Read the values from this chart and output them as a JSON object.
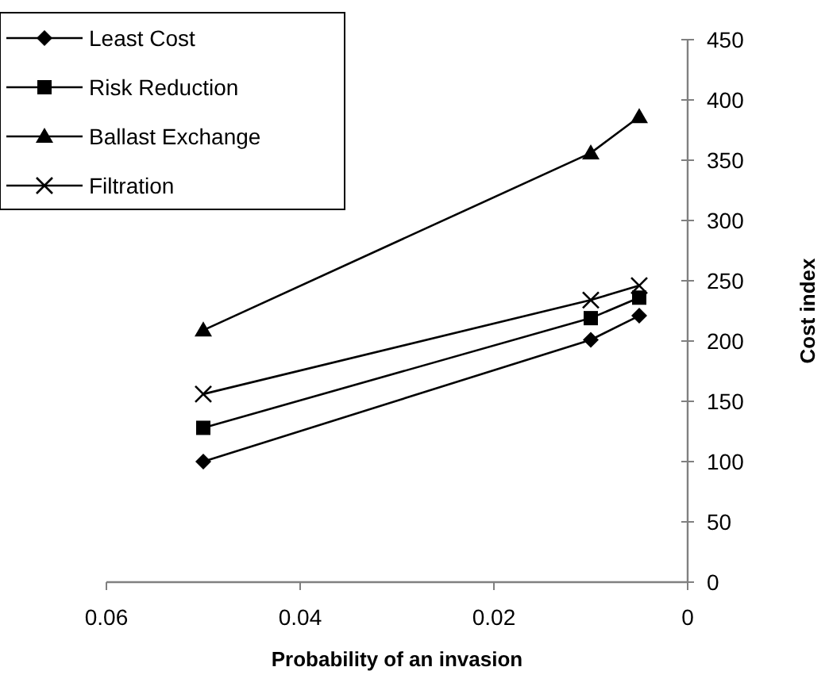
{
  "chart_data": {
    "type": "line",
    "xlabel": "Probability of an invasion",
    "ylabel": "Cost index",
    "x": [
      0.05,
      0.01,
      0.005
    ],
    "xlim": [
      0.06,
      0
    ],
    "xticks": [
      {
        "value": 0.06,
        "label": "0.06"
      },
      {
        "value": 0.04,
        "label": "0.04"
      },
      {
        "value": 0.02,
        "label": "0.02"
      },
      0
    ],
    "ylim": [
      0,
      450
    ],
    "yticks": [
      0,
      50,
      100,
      150,
      200,
      250,
      300,
      350,
      400,
      450
    ],
    "grid": false,
    "legend": "top left",
    "series": [
      {
        "name": "Least Cost",
        "color": "#000000",
        "marker": "diamond",
        "values": [
          100,
          201,
          221
        ]
      },
      {
        "name": "Risk Reduction",
        "color": "#000000",
        "marker": "square",
        "values": [
          128,
          219,
          236
        ]
      },
      {
        "name": "Ballast Exchange",
        "color": "#000000",
        "marker": "triangle",
        "values": [
          209,
          356,
          386
        ]
      },
      {
        "name": "Filtration",
        "color": "#000000",
        "marker": "cross",
        "values": [
          156,
          234,
          246
        ]
      }
    ]
  }
}
